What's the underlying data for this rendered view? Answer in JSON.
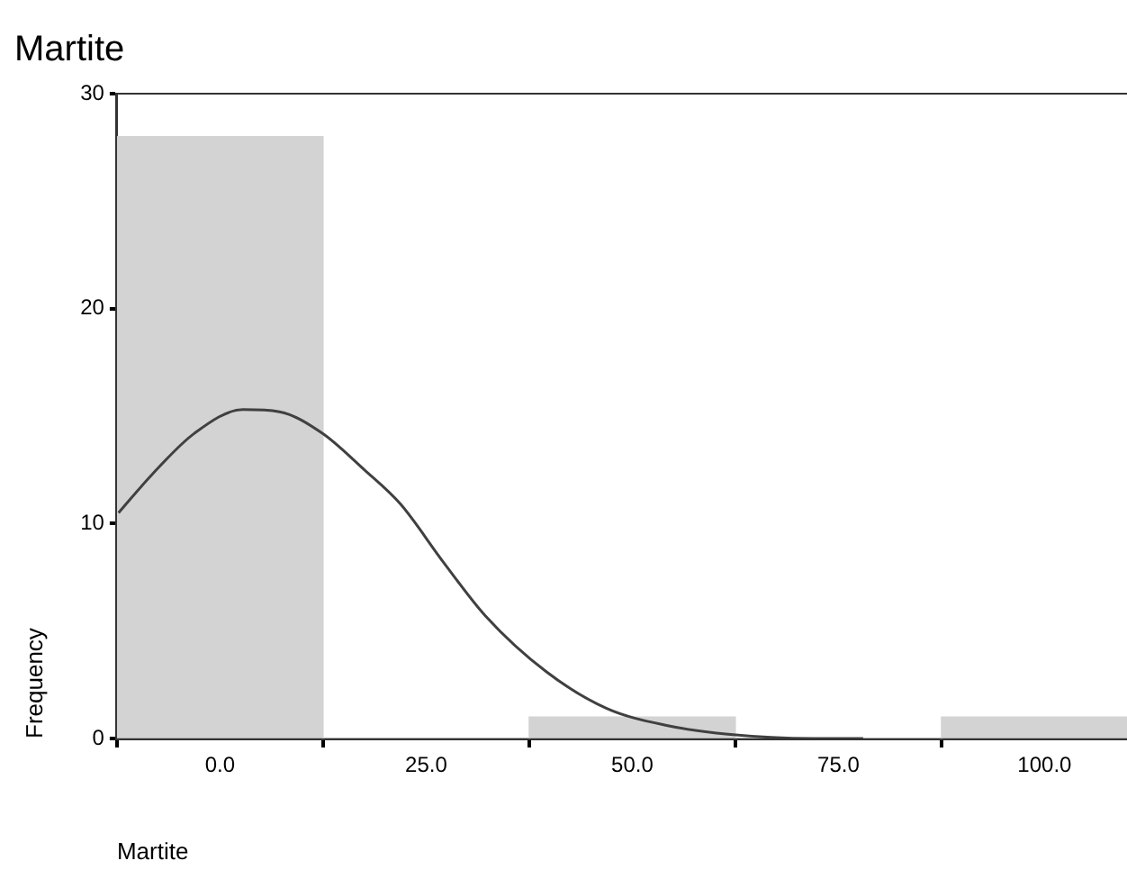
{
  "chart_data": {
    "type": "histogram",
    "title": "Martite",
    "xlabel": "Martite",
    "ylabel": "Frequency",
    "bins": [
      -12.5,
      12.5,
      37.5,
      62.5,
      87.5,
      112.5
    ],
    "values": [
      28,
      0,
      1,
      0,
      1
    ],
    "color": "#d3d3d3",
    "series": [
      {
        "type": "line",
        "color": "#404040",
        "x": [
          -12.3,
          -8.2,
          -3.1,
          2.8,
          7.2,
          12.4,
          17.5,
          21.9,
          27.1,
          32.2,
          39.6,
          46.9,
          54.3,
          61.6,
          71.9,
          78
        ],
        "values": [
          10.5,
          12.3,
          14.2,
          15.3,
          15.2,
          14.2,
          12.5,
          10.9,
          8.2,
          5.7,
          3.1,
          1.4,
          0.6,
          0.2,
          0,
          0
        ]
      }
    ],
    "xlim": [
      -12.5,
      110
    ],
    "ylim": [
      0,
      30
    ],
    "xticks": [
      {
        "value": 0,
        "label": "0.0"
      },
      {
        "value": 25,
        "label": "25.0"
      },
      {
        "value": 50,
        "label": "50.0"
      },
      {
        "value": 75,
        "label": "75.0"
      },
      {
        "value": 100,
        "label": "100.0"
      }
    ],
    "yticks": [
      0,
      10,
      20,
      30
    ],
    "grid": false,
    "marker": "none"
  }
}
